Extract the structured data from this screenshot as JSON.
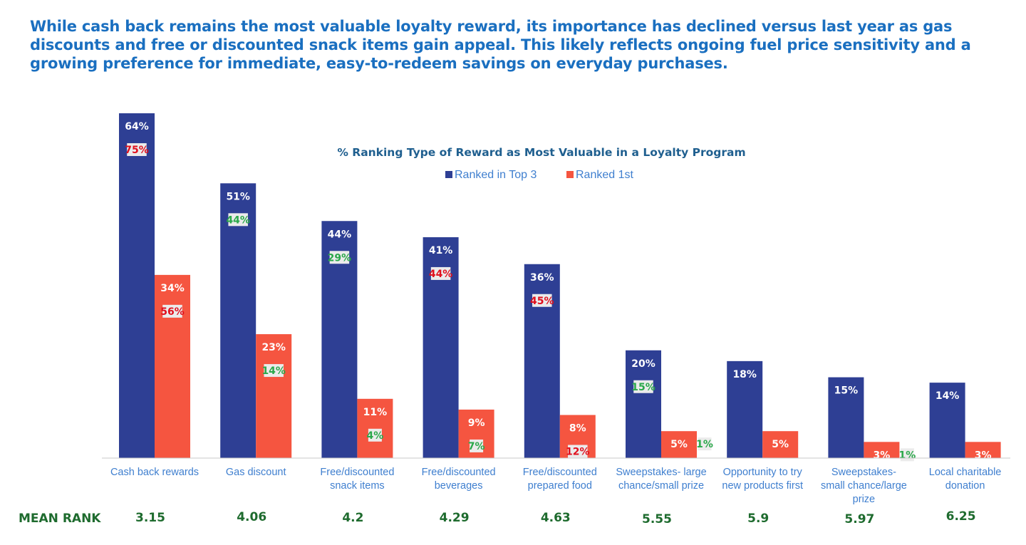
{
  "headline": "While cash back remains the most valuable loyalty reward, its importance has declined versus last year as gas discounts and free or discounted snack items gain appeal. This likely reflects ongoing fuel price sensitivity and a growing preference for immediate, easy-to-redeem savings on everyday purchases.",
  "colors": {
    "top3": "#2e3f94",
    "first": "#f55540",
    "cmp_red": "#e0101e",
    "cmp_green": "#2aa84a",
    "cmp_bg": "#ebebeb",
    "axis": "#c8c8c8"
  },
  "chart_data": {
    "type": "bar",
    "title": "% Ranking Type of Reward as Most Valuable in a Loyalty Program",
    "legend_position": "top-center",
    "grid": false,
    "ylim": [
      0,
      64
    ],
    "categories": [
      [
        "Cash back rewards"
      ],
      [
        "Gas discount"
      ],
      [
        "Free/discounted",
        "snack items"
      ],
      [
        "Free/discounted",
        "beverages"
      ],
      [
        "Free/discounted",
        "prepared food"
      ],
      [
        "Sweepstakes- large",
        "chance/small prize"
      ],
      [
        "Opportunity to try",
        "new products first"
      ],
      [
        "Sweepstakes-",
        "small chance/large",
        "prize"
      ],
      [
        "Local charitable",
        "donation"
      ]
    ],
    "series": [
      {
        "name": "Ranked in Top 3",
        "values": [
          64,
          51,
          44,
          41,
          36,
          20,
          18,
          15,
          14
        ],
        "labels": [
          "64%",
          "51%",
          "44%",
          "41%",
          "36%",
          "20%",
          "18%",
          "15%",
          "14%"
        ],
        "comparison_labels": [
          "75%",
          "44%",
          "29%",
          "44%",
          "45%",
          "15%",
          null,
          null,
          null
        ],
        "comparison_colors": [
          "red",
          "green",
          "green",
          "red",
          "red",
          "green",
          null,
          null,
          null
        ]
      },
      {
        "name": "Ranked 1st",
        "values": [
          34,
          23,
          11,
          9,
          8,
          5,
          5,
          3,
          3
        ],
        "labels": [
          "34%",
          "23%",
          "11%",
          "9%",
          "8%",
          "5%",
          "5%",
          "3%",
          "3%"
        ],
        "comparison_labels": [
          "56%",
          "14%",
          "4%",
          "7%",
          "12%",
          "1%",
          null,
          "1%",
          null
        ],
        "comparison_colors": [
          "red",
          "green",
          "green",
          "green",
          "red",
          "green",
          null,
          "green",
          null
        ]
      }
    ],
    "mean_rank": {
      "label": "MEAN RANK",
      "values": [
        "3.15",
        "4.06",
        "4.2",
        "4.29",
        "4.63",
        "5.55",
        "5.9",
        "5.97",
        "6.25"
      ]
    }
  }
}
